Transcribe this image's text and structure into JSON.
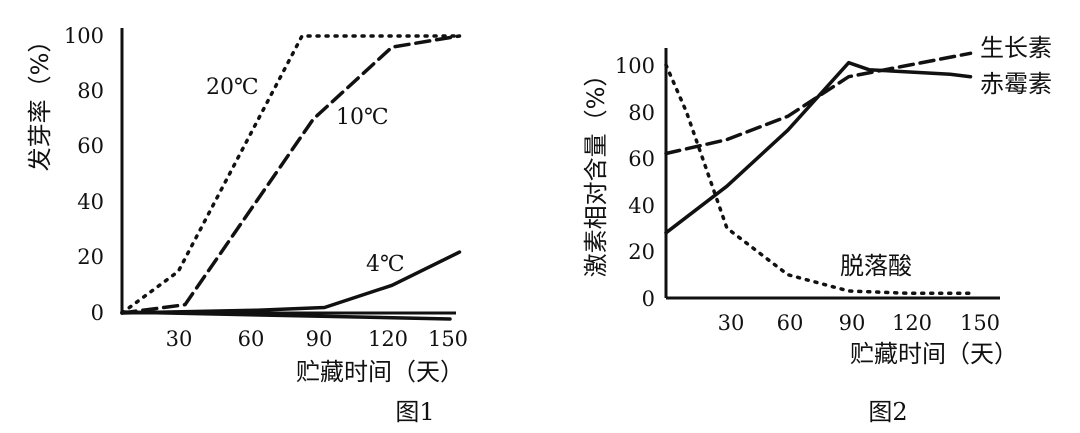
{
  "chart_data": [
    {
      "type": "line",
      "title": "图1",
      "xlabel": "贮藏时间（天）",
      "ylabel": "发芽率（%）",
      "xlim": [
        0,
        150
      ],
      "ylim": [
        0,
        100
      ],
      "x_ticks": [
        "30",
        "60",
        "90",
        "120",
        "150"
      ],
      "y_ticks": [
        "0",
        "20",
        "40",
        "60",
        "80",
        "100"
      ],
      "series": [
        {
          "name": "20℃",
          "style": "dotted",
          "x": [
            0,
            25,
            80,
            150
          ],
          "y": [
            0,
            15,
            100,
            100
          ]
        },
        {
          "name": "10℃",
          "style": "dashed",
          "x": [
            0,
            28,
            85,
            120,
            150
          ],
          "y": [
            0,
            3,
            70,
            96,
            100
          ]
        },
        {
          "name": "4℃",
          "style": "solid",
          "x": [
            0,
            60,
            90,
            120,
            150
          ],
          "y": [
            0,
            1,
            2,
            10,
            22
          ]
        }
      ]
    },
    {
      "type": "line",
      "title": "图2",
      "xlabel": "贮藏时间（天）",
      "ylabel": "激素相对含量（%）",
      "xlim": [
        0,
        150
      ],
      "ylim": [
        0,
        100
      ],
      "x_ticks": [
        "30",
        "60",
        "90",
        "120",
        "150"
      ],
      "y_ticks": [
        "0",
        "20",
        "40",
        "60",
        "80",
        "100"
      ],
      "series": [
        {
          "name": "生长素",
          "style": "dashed",
          "x": [
            0,
            30,
            60,
            90,
            120,
            150
          ],
          "y": [
            62,
            68,
            78,
            95,
            100,
            105
          ]
        },
        {
          "name": "赤霉素",
          "style": "solid",
          "x": [
            0,
            30,
            60,
            90,
            100,
            120,
            140,
            150
          ],
          "y": [
            28,
            48,
            72,
            101,
            98,
            97,
            96,
            95
          ]
        },
        {
          "name": "脱落酸",
          "style": "dotted",
          "x": [
            0,
            10,
            30,
            60,
            90,
            120,
            150
          ],
          "y": [
            100,
            80,
            30,
            10,
            3,
            2,
            2
          ]
        }
      ]
    }
  ],
  "figure1": {
    "ylabel": "发芽率（%）",
    "xlabel": "贮藏时间（天）",
    "caption": "图1",
    "labels": {
      "t20": "20℃",
      "t10": "10℃",
      "t4": "4℃"
    }
  },
  "figure2": {
    "ylabel": "激素相对含量（%）",
    "xlabel": "贮藏时间（天）",
    "caption": "图2",
    "labels": {
      "auxin": "生长素",
      "gibberellin": "赤霉素",
      "aba": "脱落酸"
    }
  }
}
